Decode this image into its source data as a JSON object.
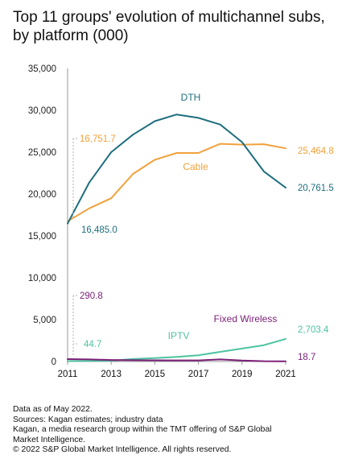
{
  "title": "Top 11 groups' evolution of multichannel subs, by platform (000)",
  "chart_data": {
    "type": "line",
    "x": [
      2011,
      2012,
      2013,
      2014,
      2015,
      2016,
      2017,
      2018,
      2019,
      2020,
      2021
    ],
    "xticks": [
      "2011",
      "2013",
      "2015",
      "2017",
      "2019",
      "2021"
    ],
    "yticks": [
      "0",
      "5,000",
      "10,000",
      "15,000",
      "20,000",
      "25,000",
      "30,000",
      "35,000"
    ],
    "ylim": [
      0,
      35000
    ],
    "grid": false,
    "series": [
      {
        "name": "DTH",
        "color": "#1f6e7f",
        "values": [
          16485.0,
          21400,
          25000,
          27100,
          28700,
          29500,
          29100,
          28300,
          26200,
          22700,
          20761.5
        ]
      },
      {
        "name": "Cable",
        "color": "#f2a13c",
        "values": [
          16751.7,
          18300,
          19500,
          22400,
          24100,
          24900,
          24900,
          26000,
          25900,
          25950,
          25464.8
        ]
      },
      {
        "name": "IPTV",
        "color": "#4dc3a1",
        "values": [
          44.7,
          60,
          100,
          300,
          400,
          550,
          750,
          1150,
          1550,
          1950,
          2703.4
        ]
      },
      {
        "name": "Fixed Wireless",
        "color": "#7a1f77",
        "values": [
          290.8,
          250,
          180,
          150,
          140,
          130,
          130,
          250,
          120,
          40,
          18.7
        ]
      }
    ],
    "annotations": {
      "cable_start": "16,751.7",
      "dth_start": "16,485.0",
      "fw_start": "290.8",
      "iptv_start": "44.7",
      "cable_end": "25,464.8",
      "dth_end": "20,761.5",
      "iptv_end": "2,703.4",
      "fw_end": "18.7"
    }
  },
  "footer": [
    "Data as of May 2022.",
    "Sources: Kagan estimates; industry data",
    "Kagan, a media research group within the TMT offering of S&P Global",
    "Market Intelligence.",
    "© 2022 S&P Global Market Intelligence. All rights reserved."
  ]
}
